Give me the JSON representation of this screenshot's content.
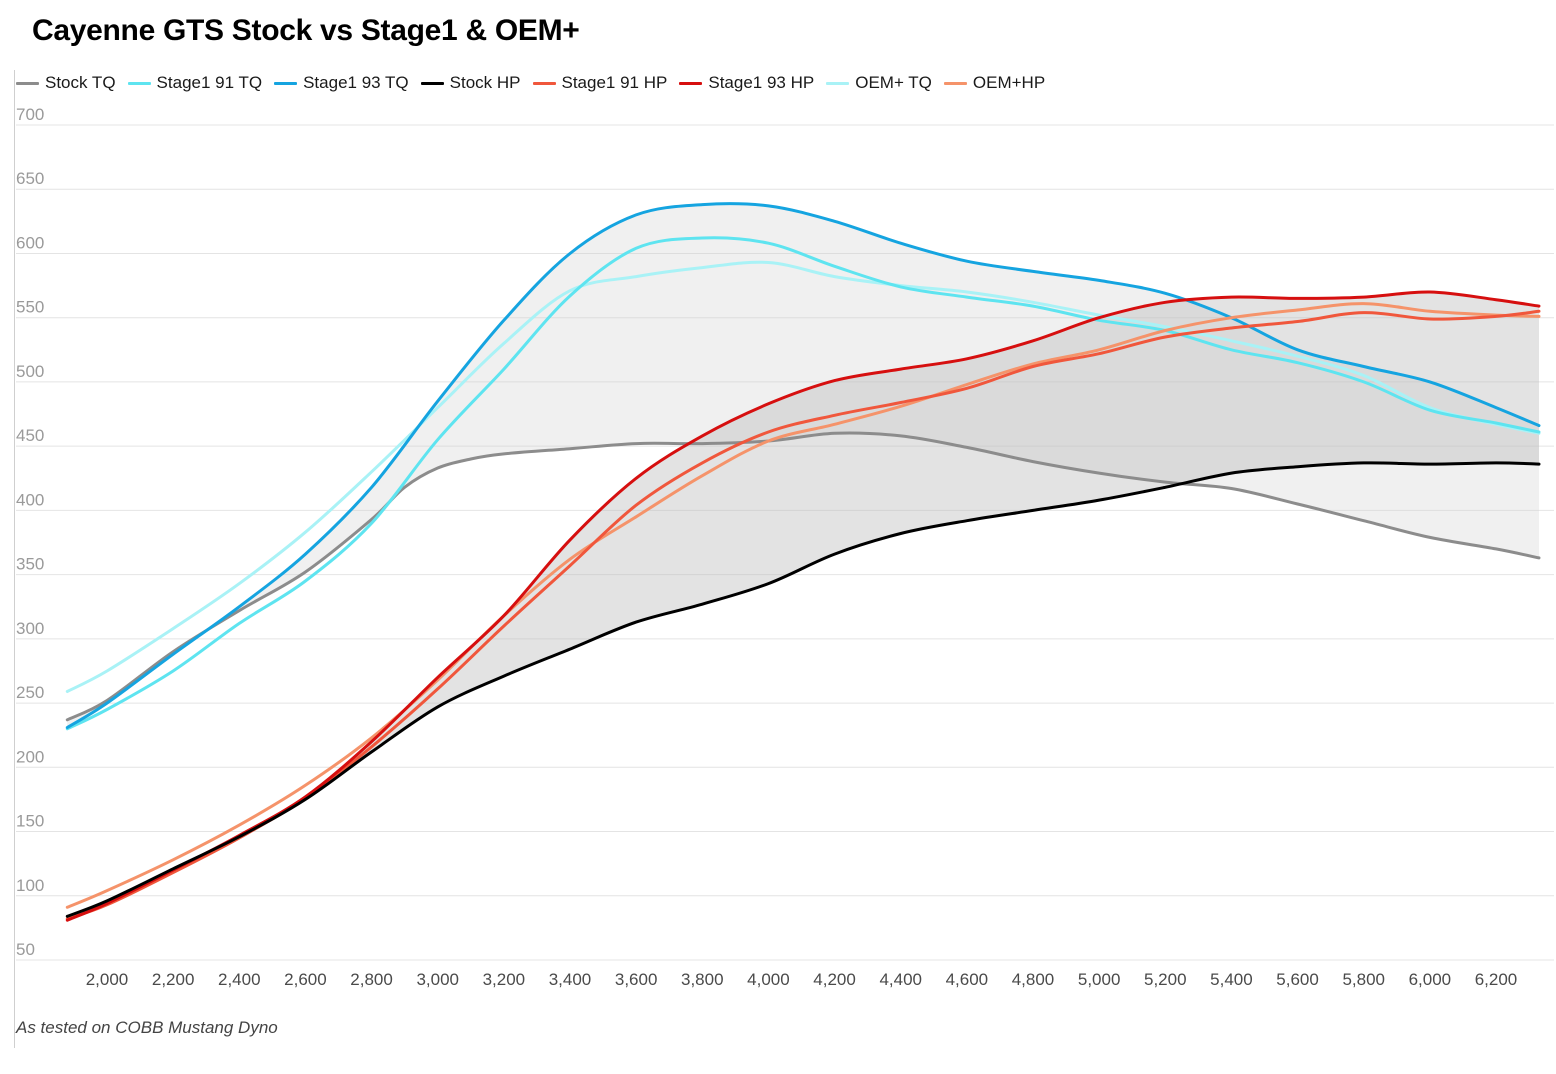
{
  "chart_data": {
    "type": "line",
    "title": "Cayenne GTS Stock vs Stage1 & OEM+",
    "footnote": "As tested on COBB Mustang Dyno",
    "xlabel": "",
    "ylabel": "",
    "xlim": [
      1880,
      6350
    ],
    "ylim": [
      50,
      700
    ],
    "yticks": [
      50,
      100,
      150,
      200,
      250,
      300,
      350,
      400,
      450,
      500,
      550,
      600,
      650,
      700
    ],
    "yticklabels": [
      "50",
      "100",
      "150",
      "200",
      "250",
      "300",
      "350",
      "400",
      "450",
      "500",
      "550",
      "600",
      "650",
      "700"
    ],
    "xticks": [
      2000,
      2200,
      2400,
      2600,
      2800,
      3000,
      3200,
      3400,
      3600,
      3800,
      4000,
      4200,
      4400,
      4600,
      4800,
      5000,
      5200,
      5400,
      5600,
      5800,
      6000,
      6200
    ],
    "xticklabels": [
      "2,000",
      "2,200",
      "2,400",
      "2,600",
      "2,800",
      "3,000",
      "3,200",
      "3,400",
      "3,600",
      "3,800",
      "4,000",
      "4,200",
      "4,400",
      "4,600",
      "4,800",
      "5,000",
      "5,200",
      "5,400",
      "5,600",
      "5,800",
      "6,000",
      "6,200"
    ],
    "grid": true,
    "legend_position": "top-left",
    "series": [
      {
        "name": "Stock TQ",
        "color": "#8c8c8c",
        "x": [
          1880,
          2000,
          2200,
          2400,
          2600,
          2800,
          2900,
          3000,
          3100,
          3200,
          3400,
          3600,
          3800,
          4000,
          4200,
          4400,
          4600,
          4800,
          5000,
          5200,
          5400,
          5600,
          5800,
          6000,
          6200,
          6330
        ],
        "y": [
          237,
          252,
          290,
          322,
          352,
          393,
          418,
          433,
          440,
          444,
          448,
          452,
          452,
          454,
          460,
          458,
          449,
          438,
          429,
          422,
          417,
          405,
          392,
          379,
          370,
          363
        ]
      },
      {
        "name": "Stage1 91 TQ",
        "color": "#5ee4f0",
        "x": [
          1880,
          2000,
          2200,
          2400,
          2600,
          2800,
          3000,
          3200,
          3400,
          3600,
          3800,
          4000,
          4200,
          4400,
          4600,
          4800,
          5000,
          5200,
          5400,
          5600,
          5800,
          6000,
          6200,
          6330
        ],
        "y": [
          230,
          245,
          275,
          312,
          345,
          390,
          455,
          510,
          567,
          604,
          612,
          608,
          590,
          574,
          566,
          559,
          548,
          540,
          525,
          515,
          500,
          478,
          468,
          461
        ]
      },
      {
        "name": "Stage1 93 TQ",
        "color": "#15a4e0",
        "x": [
          1880,
          2000,
          2200,
          2400,
          2600,
          2800,
          3000,
          3200,
          3400,
          3600,
          3800,
          4000,
          4200,
          4400,
          4600,
          4800,
          5000,
          5200,
          5400,
          5600,
          5800,
          6000,
          6200,
          6330
        ],
        "y": [
          231,
          250,
          288,
          325,
          366,
          418,
          485,
          548,
          600,
          630,
          638,
          637,
          625,
          608,
          594,
          586,
          579,
          569,
          550,
          525,
          512,
          500,
          480,
          466
        ]
      },
      {
        "name": "Stock HP",
        "color": "#000000",
        "x": [
          1880,
          2000,
          2200,
          2400,
          2600,
          2800,
          3000,
          3200,
          3400,
          3600,
          3800,
          4000,
          4200,
          4400,
          4600,
          4800,
          5000,
          5200,
          5400,
          5600,
          5800,
          6000,
          6200,
          6330
        ],
        "y": [
          84,
          96,
          121,
          146,
          175,
          212,
          247,
          271,
          292,
          313,
          327,
          343,
          366,
          382,
          392,
          400,
          408,
          418,
          429,
          434,
          437,
          436,
          437,
          436
        ]
      },
      {
        "name": "Stage1 91 HP",
        "color": "#f0573c",
        "x": [
          1880,
          2000,
          2200,
          2400,
          2600,
          2800,
          3000,
          3200,
          3400,
          3600,
          3800,
          4000,
          4200,
          4400,
          4600,
          4800,
          5000,
          5200,
          5400,
          5600,
          5800,
          6000,
          6200,
          6330
        ],
        "y": [
          82,
          93,
          118,
          145,
          176,
          216,
          261,
          310,
          357,
          404,
          437,
          461,
          474,
          484,
          495,
          512,
          522,
          535,
          542,
          547,
          554,
          549,
          551,
          555
        ]
      },
      {
        "name": "Stage1 93 HP",
        "color": "#d60f0f",
        "x": [
          1880,
          2000,
          2200,
          2400,
          2600,
          2800,
          3000,
          3200,
          3400,
          3600,
          3800,
          4000,
          4200,
          4400,
          4600,
          4800,
          5000,
          5200,
          5400,
          5600,
          5800,
          6000,
          6200,
          6330
        ],
        "y": [
          81,
          94,
          120,
          147,
          177,
          220,
          270,
          318,
          377,
          425,
          458,
          483,
          501,
          510,
          518,
          532,
          550,
          562,
          566,
          565,
          566,
          570,
          564,
          559
        ]
      },
      {
        "name": "OEM+ TQ",
        "color": "#a9f2f6",
        "x": [
          1880,
          2000,
          2200,
          2400,
          2600,
          2800,
          3000,
          3200,
          3400,
          3600,
          3800,
          4000,
          4200,
          4400,
          4600,
          4800,
          5000,
          5200,
          5400,
          5600,
          5800,
          6000,
          6200,
          6330
        ],
        "y": [
          259,
          275,
          308,
          343,
          383,
          430,
          480,
          530,
          571,
          582,
          589,
          593,
          582,
          575,
          570,
          562,
          552,
          543,
          532,
          520,
          505,
          480,
          467,
          460
        ]
      },
      {
        "name": "OEM+HP",
        "color": "#f5936a",
        "x": [
          1880,
          2000,
          2200,
          2400,
          2600,
          2800,
          3000,
          3200,
          3400,
          3600,
          3800,
          4000,
          4200,
          4400,
          4600,
          4800,
          5000,
          5200,
          5400,
          5600,
          5800,
          6000,
          6200,
          6330
        ],
        "y": [
          91,
          104,
          128,
          155,
          186,
          223,
          268,
          318,
          362,
          395,
          427,
          454,
          467,
          481,
          498,
          514,
          525,
          540,
          550,
          556,
          561,
          555,
          552,
          551
        ]
      }
    ],
    "shaded_bands": [
      {
        "between": [
          "Stock TQ",
          "Stage1 93 TQ"
        ],
        "color": "#cccccc",
        "opacity": 0.3
      },
      {
        "between": [
          "Stock HP",
          "Stage1 93 HP"
        ],
        "color": "#bdbdbd",
        "opacity": 0.42
      }
    ]
  }
}
